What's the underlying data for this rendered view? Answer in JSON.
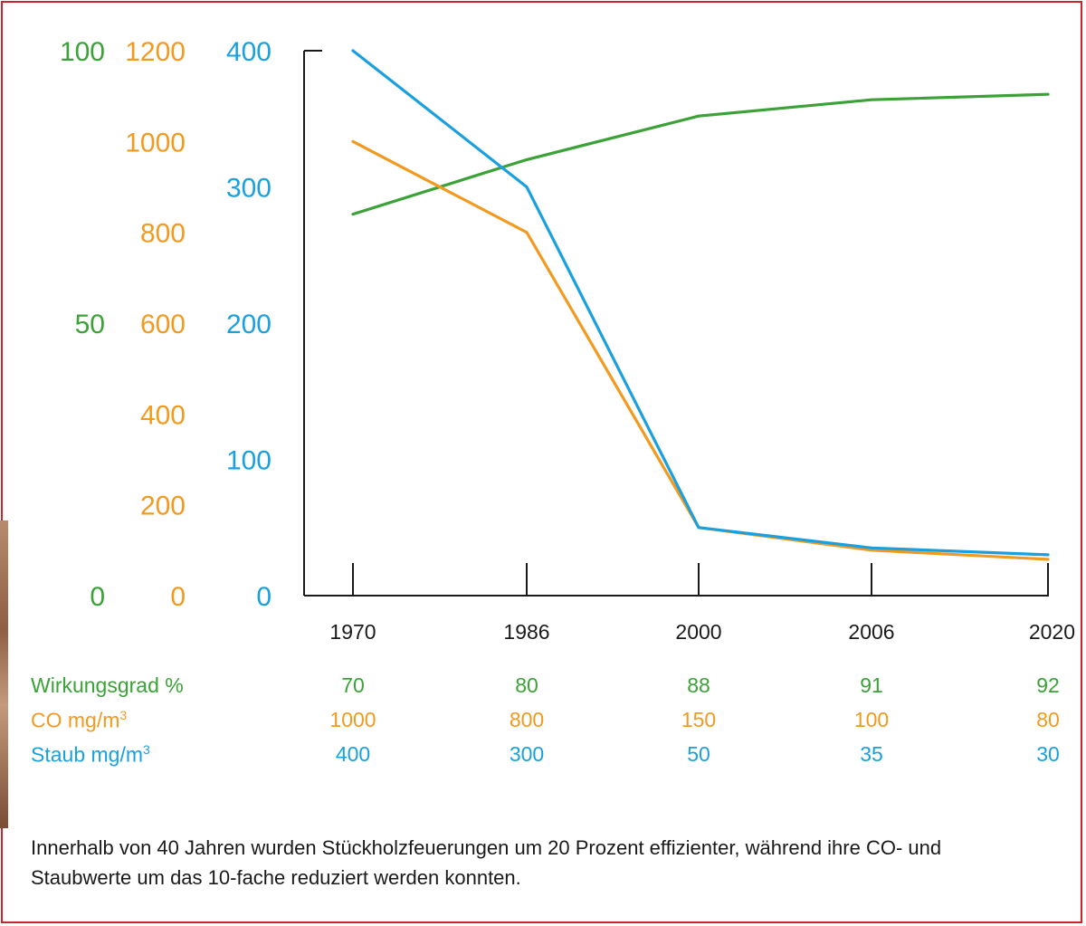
{
  "chart_data": {
    "type": "line",
    "x": [
      "1970",
      "1986",
      "2000",
      "2006",
      "2020"
    ],
    "series": [
      {
        "key": "wirkungsgrad",
        "values": [
          70,
          80,
          88,
          91,
          92
        ],
        "color": "#3aa237",
        "ylim": [
          0,
          100
        ],
        "yticks": [
          0,
          50,
          100
        ]
      },
      {
        "key": "co",
        "values": [
          1000,
          800,
          150,
          100,
          80
        ],
        "color": "#f29a1f",
        "ylim": [
          0,
          1200
        ],
        "yticks": [
          0,
          200,
          400,
          600,
          800,
          1000,
          1200
        ]
      },
      {
        "key": "staub",
        "values": [
          400,
          300,
          50,
          35,
          30
        ],
        "color": "#1aa0de",
        "ylim": [
          0,
          400
        ],
        "yticks": [
          0,
          100,
          200,
          300,
          400
        ]
      }
    ],
    "grid": false
  },
  "table": {
    "rows": [
      {
        "label": "Wirkungsgrad %",
        "unit_sup": "",
        "color": "#3aa237",
        "values": [
          "70",
          "80",
          "88",
          "91",
          "92"
        ]
      },
      {
        "label": "CO mg/m",
        "unit_sup": "3",
        "color": "#f29a1f",
        "values": [
          "1000",
          "800",
          "150",
          "100",
          "80"
        ]
      },
      {
        "label": "Staub mg/m",
        "unit_sup": "3",
        "color": "#1aa0de",
        "values": [
          "400",
          "300",
          "50",
          "35",
          "30"
        ]
      }
    ]
  },
  "caption": "Innerhalb von 40 Jahren wurden Stückholzfeuerungen um 20 Prozent effizienter, während ihre CO- und Staubwerte um das 10-fache reduziert werden konnten.",
  "colors": {
    "frame": "#c8252c",
    "axis": "#1a1a1a"
  }
}
